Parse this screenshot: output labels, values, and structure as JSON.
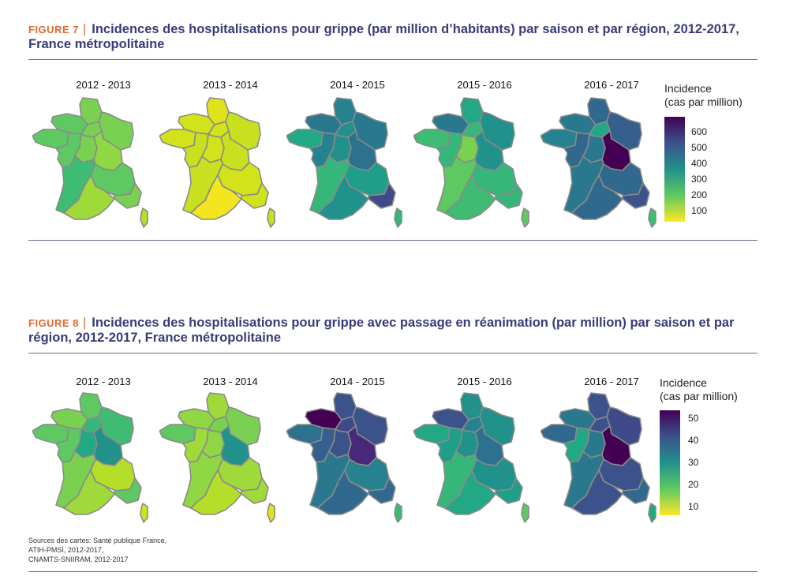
{
  "figure7": {
    "number": "FIGURE 7",
    "title": "Incidences des hospitalisations pour grippe (par million d’habitants) par saison et par région, 2012-2017, France métropolitaine",
    "seasons": [
      "2012 - 2013",
      "2013 - 2014",
      "2014 - 2015",
      "2015 - 2016",
      "2016 - 2017"
    ],
    "legend": {
      "title_line1": "Incidence",
      "title_line2": "(cas par million)",
      "ticks": [
        "600",
        "500",
        "400",
        "300",
        "200",
        "100"
      ]
    }
  },
  "figure8": {
    "number": "FIGURE 8",
    "title": "Incidences des hospitalisations pour grippe avec passage en réanimation (par million) par saison et par région, 2012-2017, France métropolitaine",
    "seasons": [
      "2012 - 2013",
      "2013 - 2014",
      "2014 - 2015",
      "2015 - 2016",
      "2016 - 2017"
    ],
    "legend": {
      "title_line1": "Incidence",
      "title_line2": "(cas par million)",
      "ticks": [
        "50",
        "40",
        "30",
        "20",
        "10"
      ]
    }
  },
  "sources": {
    "line1": "Sources des cartes: Santé publique France,",
    "line2": "ATIH-PMSI, 2012-2017,",
    "line3": "CNAMTS-SNIIRAM, 2012-2017"
  },
  "colors": {
    "viridis": [
      "#440154",
      "#3b528b",
      "#21908c",
      "#5ec962",
      "#fde725"
    ],
    "region_border": "#8a8a8a",
    "rule": "#6a6a8a",
    "title": "#3a3a7a",
    "accent": "#e06a2c"
  },
  "map_fills": {
    "fig7": [
      [
        "#7ad151",
        "#5ec962",
        "#7ad151",
        "#7ad151",
        "#5ec962",
        "#5ec962",
        "#7ad151",
        "#8fd744",
        "#3fbc73",
        "#5ec962",
        "#9fda3a",
        "#7ad151",
        "#b5de2b"
      ],
      [
        "#e0e31a",
        "#d2e21b",
        "#d2e21b",
        "#c8e020",
        "#d2e21b",
        "#c8e020",
        "#d2e21b",
        "#c8e020",
        "#c8e020",
        "#d2e21b",
        "#f4e61e",
        "#d2e21b",
        "#c8e020"
      ],
      [
        "#26828e",
        "#2a788e",
        "#21918c",
        "#2a788e",
        "#22a884",
        "#26828e",
        "#21918c",
        "#2c728e",
        "#35b779",
        "#1f9e89",
        "#21918c",
        "#3e4a89",
        "#35b779"
      ],
      [
        "#22a884",
        "#2a788e",
        "#35b779",
        "#21918c",
        "#3fbc73",
        "#35b779",
        "#7ad151",
        "#21918c",
        "#5ec962",
        "#35b779",
        "#3fbc73",
        "#35b779",
        "#5ec962"
      ],
      [
        "#31688e",
        "#2a788e",
        "#22a884",
        "#355f8d",
        "#26828e",
        "#31688e",
        "#2a788e",
        "#440154",
        "#2a788e",
        "#31688e",
        "#31688e",
        "#3b528b",
        "#3fbc73"
      ]
    ],
    "fig8": [
      [
        "#5ec962",
        "#7ad151",
        "#35b779",
        "#3fbc73",
        "#5ec962",
        "#5ec962",
        "#22a884",
        "#21918c",
        "#7ad151",
        "#b5de2b",
        "#9fda3a",
        "#5ec962",
        "#d2e21b"
      ],
      [
        "#9fda3a",
        "#8fd744",
        "#7ad151",
        "#7ad151",
        "#5ec962",
        "#9fda3a",
        "#8fd744",
        "#21918c",
        "#8fd744",
        "#9fda3a",
        "#b5de2b",
        "#9fda3a",
        "#e0e31a"
      ],
      [
        "#3b528b",
        "#440154",
        "#3e4a89",
        "#3b528b",
        "#2c728e",
        "#355f8d",
        "#3b528b",
        "#482878",
        "#2a788e",
        "#26828e",
        "#31688e",
        "#31688e",
        "#3fbc73"
      ],
      [
        "#21918c",
        "#3b528b",
        "#26828e",
        "#21918c",
        "#22a884",
        "#1f9e89",
        "#21918c",
        "#2c728e",
        "#35b779",
        "#21918c",
        "#22a884",
        "#1f9e89",
        "#5ec962"
      ],
      [
        "#3b528b",
        "#2a788e",
        "#3b528b",
        "#3e4a89",
        "#31688e",
        "#22a884",
        "#2a788e",
        "#440154",
        "#2a788e",
        "#3b528b",
        "#3b528b",
        "#31688e",
        "#22a884"
      ]
    ]
  }
}
